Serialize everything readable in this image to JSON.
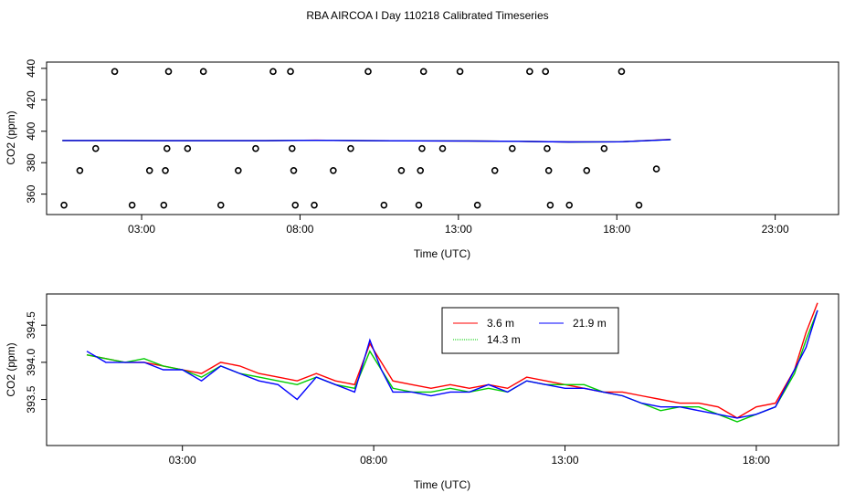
{
  "title": "RBA AIRCOA I  Day 110218  Calibrated Timeseries",
  "chart_data": [
    {
      "type": "scatter+line",
      "xlabel": "Time (UTC)",
      "ylabel": "CO2 (ppm)",
      "xlim": [
        0,
        25.0
      ],
      "ylim": [
        347,
        444
      ],
      "xticks": [
        3,
        8,
        13,
        18,
        23
      ],
      "xtick_labels": [
        "03:00",
        "08:00",
        "13:00",
        "18:00",
        "23:00"
      ],
      "yticks": [
        360,
        380,
        400,
        420,
        440
      ],
      "ytick_labels": [
        "360",
        "380",
        "400",
        "420",
        "440"
      ],
      "points": [
        {
          "x": 0.55,
          "y": 353
        },
        {
          "x": 1.05,
          "y": 375
        },
        {
          "x": 1.55,
          "y": 389
        },
        {
          "x": 2.15,
          "y": 438
        },
        {
          "x": 2.7,
          "y": 353
        },
        {
          "x": 3.25,
          "y": 375
        },
        {
          "x": 3.7,
          "y": 353
        },
        {
          "x": 3.75,
          "y": 375
        },
        {
          "x": 3.8,
          "y": 389
        },
        {
          "x": 3.85,
          "y": 438
        },
        {
          "x": 4.45,
          "y": 389
        },
        {
          "x": 4.95,
          "y": 438
        },
        {
          "x": 5.5,
          "y": 353
        },
        {
          "x": 6.05,
          "y": 375
        },
        {
          "x": 6.6,
          "y": 389
        },
        {
          "x": 7.15,
          "y": 438
        },
        {
          "x": 7.7,
          "y": 438
        },
        {
          "x": 7.75,
          "y": 389
        },
        {
          "x": 7.8,
          "y": 375
        },
        {
          "x": 7.85,
          "y": 353
        },
        {
          "x": 8.45,
          "y": 353
        },
        {
          "x": 9.05,
          "y": 375
        },
        {
          "x": 9.6,
          "y": 389
        },
        {
          "x": 10.15,
          "y": 438
        },
        {
          "x": 10.65,
          "y": 353
        },
        {
          "x": 11.2,
          "y": 375
        },
        {
          "x": 11.75,
          "y": 353
        },
        {
          "x": 11.8,
          "y": 375
        },
        {
          "x": 11.85,
          "y": 389
        },
        {
          "x": 11.9,
          "y": 438
        },
        {
          "x": 12.5,
          "y": 389
        },
        {
          "x": 13.05,
          "y": 438
        },
        {
          "x": 13.6,
          "y": 353
        },
        {
          "x": 14.15,
          "y": 375
        },
        {
          "x": 14.7,
          "y": 389
        },
        {
          "x": 15.25,
          "y": 438
        },
        {
          "x": 15.75,
          "y": 438
        },
        {
          "x": 15.8,
          "y": 389
        },
        {
          "x": 15.85,
          "y": 375
        },
        {
          "x": 15.9,
          "y": 353
        },
        {
          "x": 16.5,
          "y": 353
        },
        {
          "x": 17.05,
          "y": 375
        },
        {
          "x": 17.6,
          "y": 389
        },
        {
          "x": 18.15,
          "y": 438
        },
        {
          "x": 18.7,
          "y": 353
        },
        {
          "x": 19.25,
          "y": 376
        }
      ],
      "series": [
        {
          "name": "3.6 m",
          "color": "#ff0000",
          "x_start": 0.5,
          "x_end": 19.7,
          "y": [
            394.1,
            394.1,
            394.0,
            394.0,
            394.0,
            394.3,
            394.0,
            393.9,
            393.8,
            393.6,
            393.2,
            393.3,
            394.8
          ]
        },
        {
          "name": "14.3 m",
          "color": "#00cc00",
          "x_start": 0.5,
          "x_end": 19.7,
          "y": [
            394.1,
            394.1,
            394.0,
            394.0,
            394.0,
            394.2,
            394.0,
            393.9,
            393.8,
            393.6,
            393.1,
            393.3,
            394.7
          ]
        },
        {
          "name": "21.9 m",
          "color": "#0000ff",
          "x_start": 0.5,
          "x_end": 19.7,
          "y": [
            394.1,
            394.1,
            394.0,
            394.0,
            394.0,
            394.2,
            394.0,
            393.9,
            393.8,
            393.6,
            393.2,
            393.3,
            394.7
          ]
        }
      ]
    },
    {
      "type": "line",
      "xlabel": "Time (UTC)",
      "ylabel": "CO2 (ppm)",
      "xlim": [
        -0.55,
        20.15
      ],
      "ylim": [
        392.88,
        394.92
      ],
      "xticks": [
        3,
        8,
        13,
        18
      ],
      "xtick_labels": [
        "03:00",
        "08:00",
        "13:00",
        "18:00"
      ],
      "yticks": [
        393.5,
        394.0,
        394.5
      ],
      "ytick_labels": [
        "393.5",
        "394.0",
        "394.5"
      ],
      "legend": {
        "placement": "top-center",
        "entries": [
          "3.6 m",
          "14.3 m",
          "21.9 m"
        ]
      },
      "series": [
        {
          "name": "3.6 m",
          "color": "#ff0000",
          "x": [
            0.5,
            1.0,
            1.5,
            2.0,
            2.5,
            3.0,
            3.5,
            4.0,
            4.5,
            5.0,
            5.5,
            6.0,
            6.5,
            7.0,
            7.5,
            7.9,
            8.2,
            8.5,
            9.0,
            9.5,
            10.0,
            10.5,
            11.0,
            11.5,
            12.0,
            12.5,
            13.0,
            13.5,
            14.0,
            14.5,
            15.0,
            15.5,
            16.0,
            16.5,
            17.0,
            17.5,
            18.0,
            18.5,
            19.0,
            19.3,
            19.6
          ],
          "y": [
            394.1,
            394.05,
            394.0,
            394.0,
            393.95,
            393.9,
            393.85,
            394.0,
            393.95,
            393.85,
            393.8,
            393.75,
            393.85,
            393.75,
            393.7,
            394.25,
            394.0,
            393.75,
            393.7,
            393.65,
            393.7,
            393.65,
            393.7,
            393.65,
            393.8,
            393.75,
            393.7,
            393.65,
            393.6,
            393.6,
            393.55,
            393.5,
            393.45,
            393.45,
            393.4,
            393.25,
            393.4,
            393.45,
            393.9,
            394.4,
            394.8
          ]
        },
        {
          "name": "14.3 m",
          "color": "#00cc00",
          "x": [
            0.5,
            1.0,
            1.5,
            2.0,
            2.5,
            3.0,
            3.5,
            4.0,
            4.5,
            5.0,
            5.5,
            6.0,
            6.5,
            7.0,
            7.5,
            7.9,
            8.2,
            8.5,
            9.0,
            9.5,
            10.0,
            10.5,
            11.0,
            11.5,
            12.0,
            12.5,
            13.0,
            13.5,
            14.0,
            14.5,
            15.0,
            15.5,
            16.0,
            16.5,
            17.0,
            17.5,
            18.0,
            18.5,
            19.0,
            19.3,
            19.6
          ],
          "y": [
            394.1,
            394.05,
            394.0,
            394.05,
            393.95,
            393.9,
            393.8,
            393.95,
            393.85,
            393.8,
            393.75,
            393.7,
            393.8,
            393.7,
            393.65,
            394.15,
            393.9,
            393.65,
            393.6,
            393.6,
            393.65,
            393.6,
            393.65,
            393.6,
            393.75,
            393.7,
            393.7,
            393.7,
            393.6,
            393.55,
            393.45,
            393.35,
            393.4,
            393.4,
            393.3,
            393.2,
            393.3,
            393.4,
            393.85,
            394.3,
            394.7
          ]
        },
        {
          "name": "21.9 m",
          "color": "#0000ff",
          "x": [
            0.5,
            1.0,
            1.5,
            2.0,
            2.5,
            3.0,
            3.5,
            4.0,
            4.5,
            5.0,
            5.5,
            6.0,
            6.5,
            7.0,
            7.5,
            7.9,
            8.2,
            8.5,
            9.0,
            9.5,
            10.0,
            10.5,
            11.0,
            11.5,
            12.0,
            12.5,
            13.0,
            13.5,
            14.0,
            14.5,
            15.0,
            15.5,
            16.0,
            16.5,
            17.0,
            17.5,
            18.0,
            18.5,
            19.0,
            19.3,
            19.6
          ],
          "y": [
            394.15,
            394.0,
            394.0,
            394.0,
            393.9,
            393.9,
            393.75,
            393.95,
            393.85,
            393.75,
            393.7,
            393.5,
            393.8,
            393.7,
            393.6,
            394.3,
            393.9,
            393.6,
            393.6,
            393.55,
            393.6,
            393.6,
            393.7,
            393.6,
            393.75,
            393.7,
            393.65,
            393.65,
            393.6,
            393.55,
            393.45,
            393.4,
            393.4,
            393.35,
            393.3,
            393.25,
            393.3,
            393.4,
            393.9,
            394.2,
            394.7
          ]
        }
      ]
    }
  ]
}
